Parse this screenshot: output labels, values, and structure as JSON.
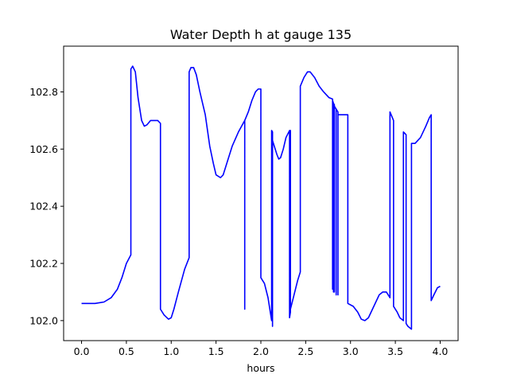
{
  "chart_data": {
    "type": "line",
    "title": "Water Depth h at gauge 135",
    "xlabel": "hours",
    "ylabel": "",
    "xlim": [
      -0.2,
      4.2
    ],
    "ylim": [
      101.93,
      102.96
    ],
    "xticks": [
      0.0,
      0.5,
      1.0,
      1.5,
      2.0,
      2.5,
      3.0,
      3.5,
      4.0
    ],
    "xtick_labels": [
      "0.0",
      "0.5",
      "1.0",
      "1.5",
      "2.0",
      "2.5",
      "3.0",
      "3.5",
      "4.0"
    ],
    "yticks": [
      102.0,
      102.2,
      102.4,
      102.6,
      102.8
    ],
    "ytick_labels": [
      "102.0",
      "102.2",
      "102.4",
      "102.6",
      "102.8"
    ],
    "grid": false,
    "legend": "none",
    "series": [
      {
        "color": "#0000ff",
        "x": [
          0.0,
          0.15,
          0.25,
          0.33,
          0.4,
          0.45,
          0.5,
          0.55,
          0.55,
          0.57,
          0.6,
          0.63,
          0.67,
          0.7,
          0.73,
          0.77,
          0.8,
          0.85,
          0.88,
          0.88,
          0.92,
          0.97,
          1.0,
          1.03,
          1.08,
          1.15,
          1.2,
          1.2,
          1.22,
          1.25,
          1.28,
          1.32,
          1.38,
          1.43,
          1.47,
          1.5,
          1.55,
          1.58,
          1.62,
          1.68,
          1.75,
          1.82,
          1.82,
          1.82,
          1.82,
          1.86,
          1.9,
          1.94,
          1.97,
          2.0,
          2.0,
          2.04,
          2.08,
          2.1,
          2.12,
          2.12,
          2.13,
          2.13,
          2.13,
          2.15,
          2.18,
          2.2,
          2.22,
          2.25,
          2.28,
          2.32,
          2.32,
          2.33,
          2.33,
          2.33,
          2.37,
          2.41,
          2.44,
          2.44,
          2.48,
          2.52,
          2.55,
          2.6,
          2.65,
          2.7,
          2.76,
          2.8,
          2.8,
          2.8,
          2.81,
          2.81,
          2.81,
          2.82,
          2.82,
          2.82,
          2.84,
          2.84,
          2.84,
          2.86,
          2.86,
          2.86,
          2.9,
          2.97,
          2.97,
          3.03,
          3.08,
          3.12,
          3.16,
          3.2,
          3.26,
          3.32,
          3.36,
          3.4,
          3.44,
          3.44,
          3.48,
          3.48,
          3.52,
          3.55,
          3.59,
          3.59,
          3.62,
          3.62,
          3.64,
          3.68,
          3.68,
          3.72,
          3.78,
          3.84,
          3.88,
          3.9,
          3.9,
          3.93,
          3.97,
          4.0
        ],
        "y": [
          102.06,
          102.06,
          102.065,
          102.08,
          102.11,
          102.15,
          102.2,
          102.23,
          102.88,
          102.89,
          102.87,
          102.78,
          102.7,
          102.68,
          102.685,
          102.7,
          102.7,
          102.7,
          102.69,
          102.04,
          102.02,
          102.005,
          102.01,
          102.04,
          102.1,
          102.18,
          102.22,
          102.87,
          102.885,
          102.885,
          102.86,
          102.8,
          102.72,
          102.61,
          102.55,
          102.51,
          102.5,
          102.51,
          102.55,
          102.61,
          102.66,
          102.7,
          102.04,
          102.7,
          102.7,
          102.73,
          102.77,
          102.8,
          102.81,
          102.81,
          102.15,
          102.13,
          102.08,
          102.04,
          102.0,
          102.665,
          102.66,
          101.98,
          102.63,
          102.61,
          102.58,
          102.565,
          102.57,
          102.6,
          102.64,
          102.665,
          102.01,
          102.03,
          102.665,
          102.04,
          102.09,
          102.14,
          102.17,
          102.82,
          102.85,
          102.87,
          102.87,
          102.85,
          102.82,
          102.8,
          102.78,
          102.775,
          102.11,
          102.77,
          102.76,
          102.1,
          102.76,
          102.755,
          102.1,
          102.75,
          102.74,
          102.09,
          102.74,
          102.73,
          102.09,
          102.72,
          102.72,
          102.72,
          102.06,
          102.05,
          102.03,
          102.005,
          102.0,
          102.01,
          102.05,
          102.09,
          102.1,
          102.1,
          102.08,
          102.73,
          102.7,
          102.05,
          102.03,
          102.01,
          102.0,
          102.66,
          102.65,
          101.99,
          101.98,
          101.97,
          102.62,
          102.62,
          102.64,
          102.68,
          102.71,
          102.72,
          102.07,
          102.09,
          102.115,
          102.12
        ]
      }
    ]
  }
}
